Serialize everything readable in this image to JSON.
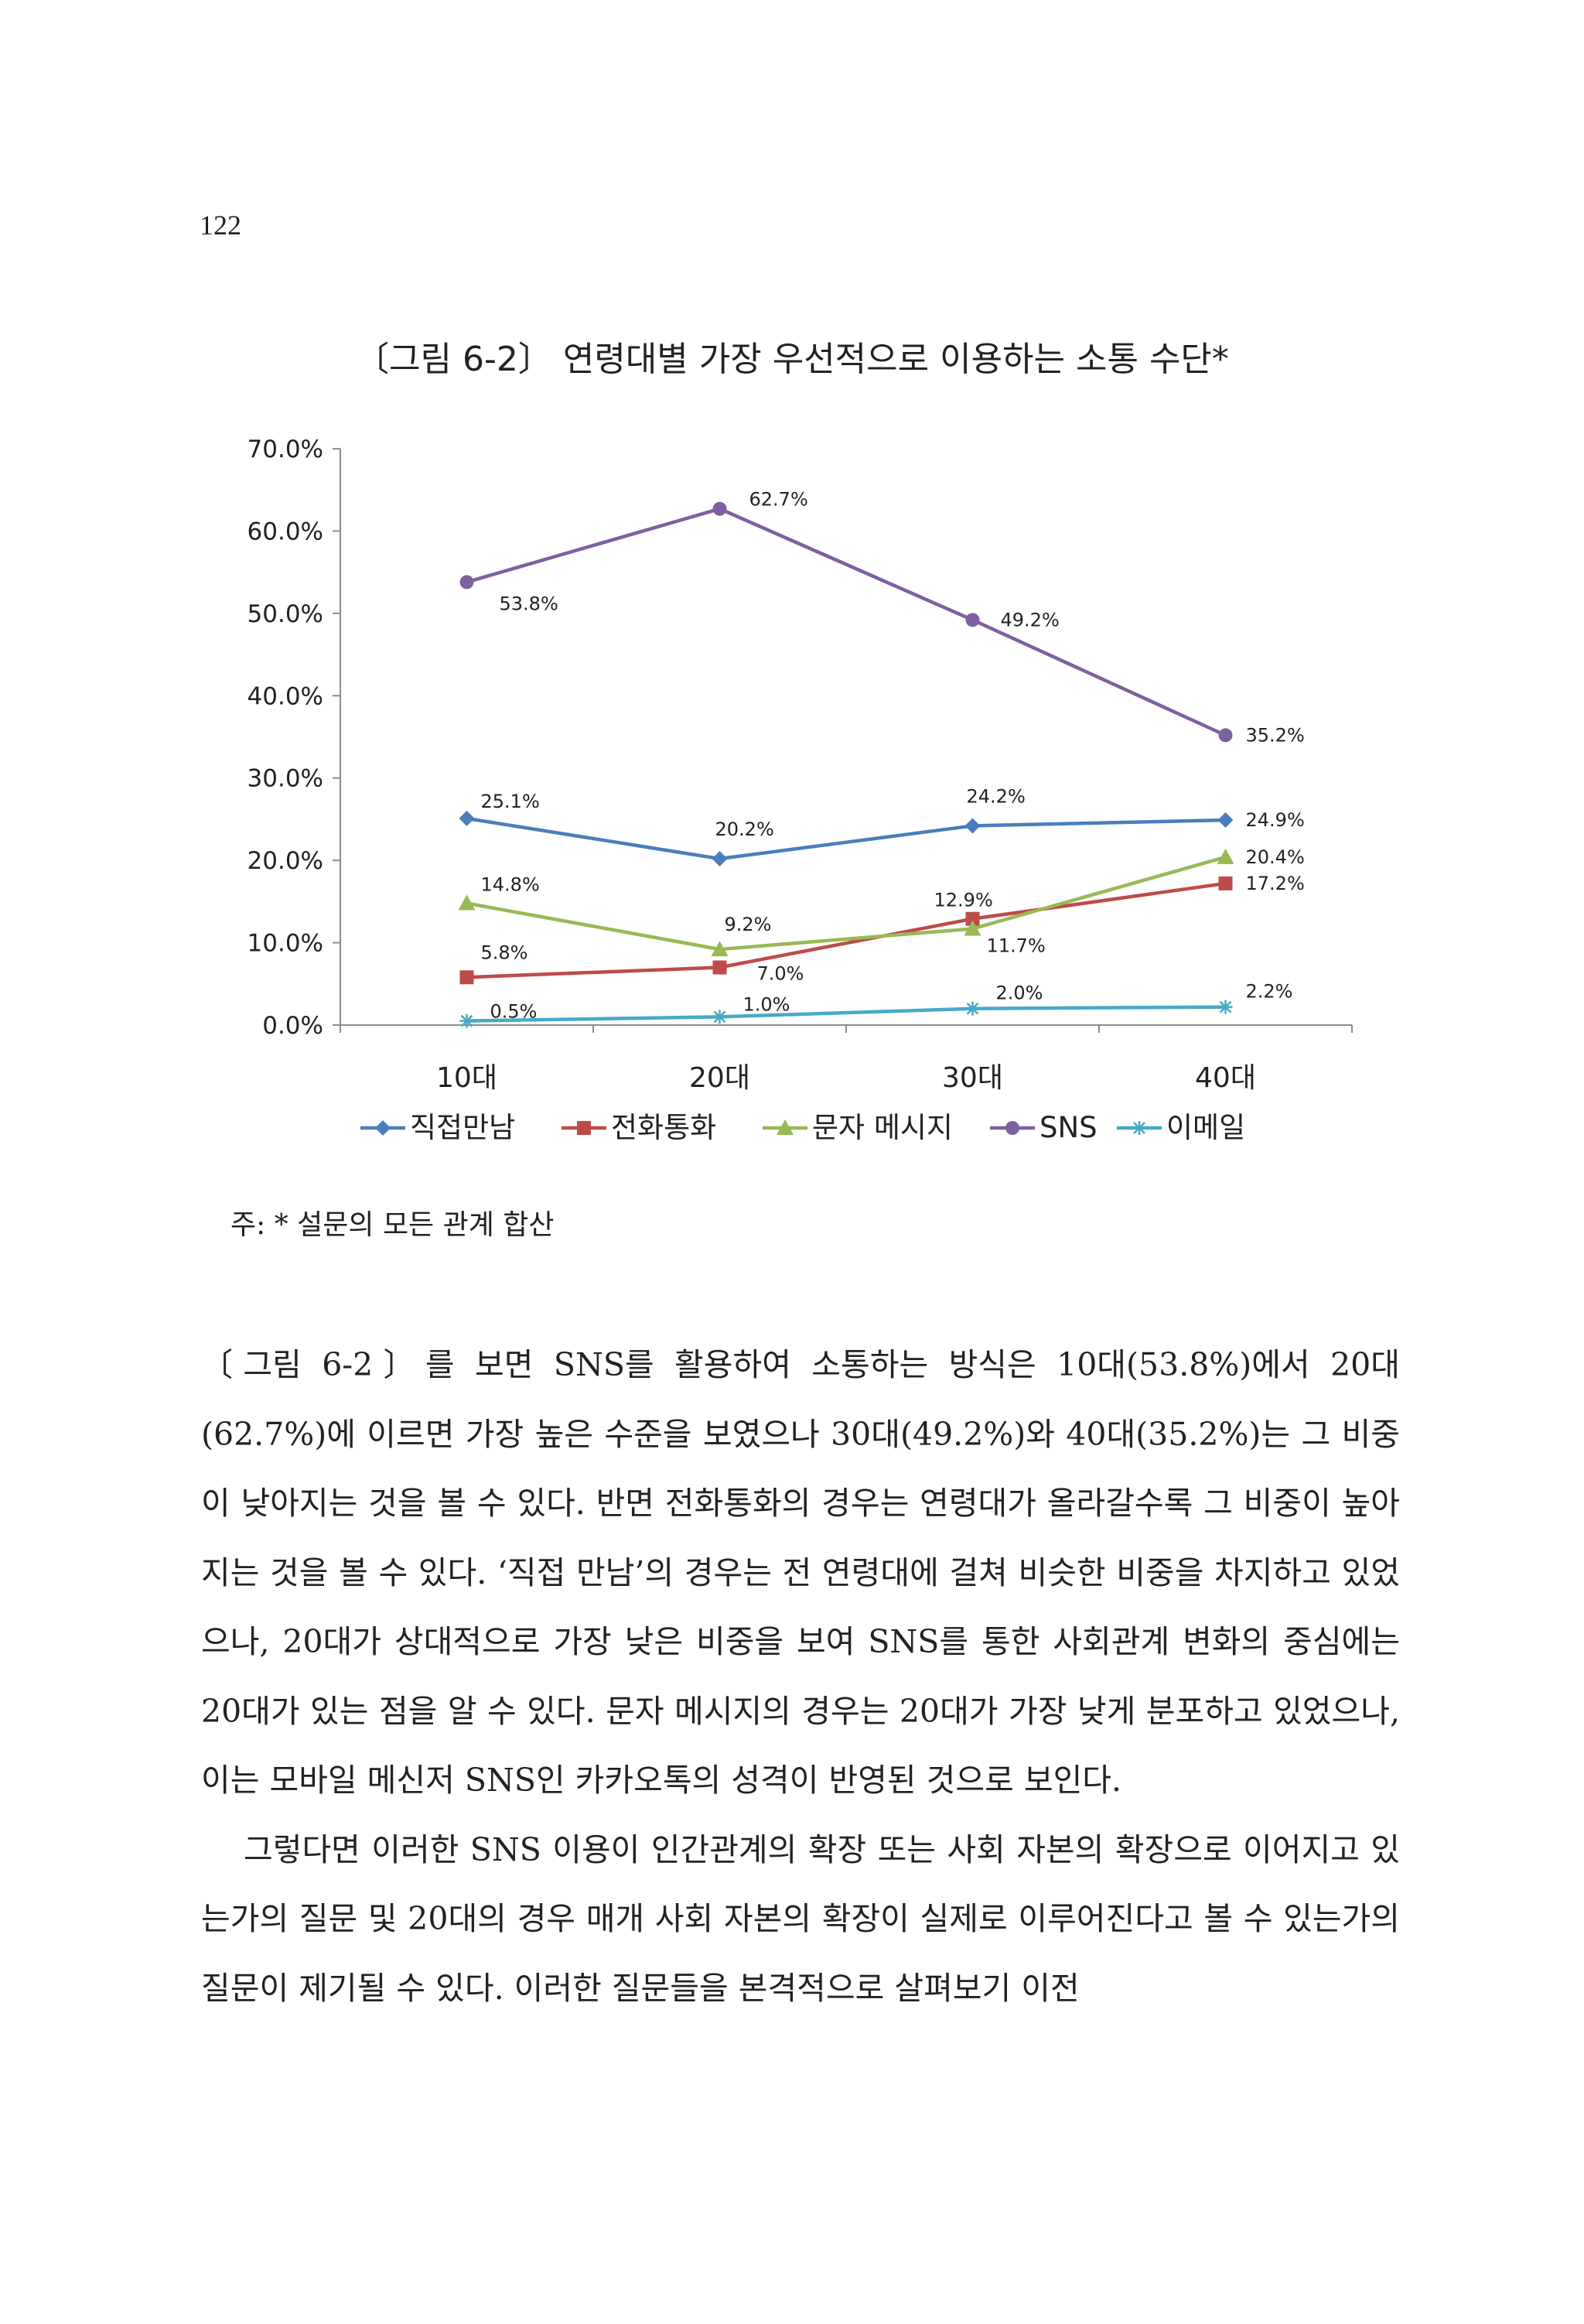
{
  "page_number": "122",
  "figure": {
    "title": "〔그림 6-2〕 연령대별 가장 우선적으로 이용하는 소통 수단*",
    "note": "주: * 설문의 모든 관계 합산"
  },
  "chart_data": {
    "type": "line",
    "title": "",
    "xlabel": "",
    "ylabel": "",
    "categories": [
      "10대",
      "20대",
      "30대",
      "40대"
    ],
    "y_ticks": [
      "0.0%",
      "10.0%",
      "20.0%",
      "30.0%",
      "40.0%",
      "50.0%",
      "60.0%",
      "70.0%"
    ],
    "ylim": [
      0,
      70
    ],
    "grid": false,
    "legend": "bottom",
    "series": [
      {
        "name": "직접만남",
        "values": [
          25.1,
          20.2,
          24.2,
          24.9
        ],
        "labels": [
          "25.1%",
          "20.2%",
          "24.2%",
          "24.9%"
        ],
        "color": "#4a7ebb",
        "marker": "diamond"
      },
      {
        "name": "전화통화",
        "values": [
          5.8,
          7.0,
          12.9,
          17.2
        ],
        "labels": [
          "5.8%",
          "7.0%",
          "12.9%",
          "17.2%"
        ],
        "color": "#be4b48",
        "marker": "square"
      },
      {
        "name": "문자 메시지",
        "values": [
          14.8,
          9.2,
          11.7,
          20.4
        ],
        "labels": [
          "14.8%",
          "9.2%",
          "11.7%",
          "20.4%"
        ],
        "color": "#98b954",
        "marker": "triangle"
      },
      {
        "name": "SNS",
        "values": [
          53.8,
          62.7,
          49.2,
          35.2
        ],
        "labels": [
          "53.8%",
          "62.7%",
          "49.2%",
          "35.2%"
        ],
        "color": "#7d60a0",
        "marker": "circle"
      },
      {
        "name": "이메일",
        "values": [
          0.5,
          1.0,
          2.0,
          2.2
        ],
        "labels": [
          "0.5%",
          "1.0%",
          "2.0%",
          "2.2%"
        ],
        "color": "#46aac5",
        "marker": "star"
      }
    ]
  },
  "body": {
    "paragraphs": [
      "〔그림 6-2〕를 보면 SNS를 활용하여 소통하는 방식은 10대(53.8%)에서 20대(62.7%)에 이르면 가장 높은 수준을 보였으나 30대(49.2%)와 40대(35.2%)는 그 비중이 낮아지는 것을 볼 수 있다. 반면 전화통화의 경우는 연령대가 올라갈수록 그 비중이 높아지는 것을 볼 수 있다. ‘직접 만남’의 경우는 전 연령대에 걸쳐 비슷한 비중을 차지하고 있었으나, 20대가 상대적으로 가장 낮은 비중을 보여 SNS를 통한 사회관계 변화의 중심에는 20대가 있는 점을 알 수 있다. 문자 메시지의 경우는 20대가 가장 낮게 분포하고 있었으나, 이는 모바일 메신저 SNS인 카카오톡의 성격이 반영된 것으로 보인다.",
      "그렇다면 이러한 SNS 이용이 인간관계의 확장 또는 사회 자본의 확장으로 이어지고 있는가의 질문 및 20대의 경우 매개 사회 자본의 확장이 실제로 이루어진다고 볼 수 있는가의 질문이 제기될 수 있다. 이러한 질문들을 본격적으로 살펴보기 이전"
    ]
  }
}
